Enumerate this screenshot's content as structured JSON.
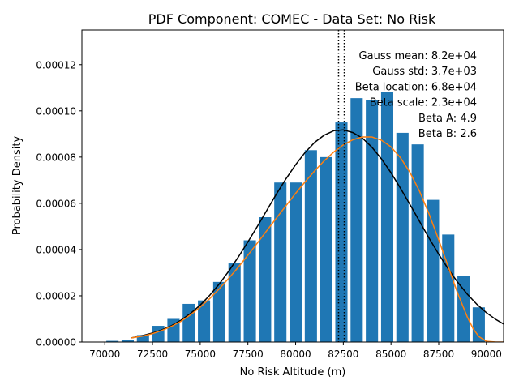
{
  "chart_data": {
    "type": "bar",
    "title": "PDF Component: COMEC - Data Set: No Risk",
    "xlabel": "No Risk Altitude (m)",
    "ylabel": "Probability Density",
    "xlim": [
      68800,
      90900
    ],
    "ylim": [
      0,
      0.000135
    ],
    "xticks": [
      70000,
      72500,
      75000,
      77500,
      80000,
      82500,
      85000,
      87500,
      90000
    ],
    "xtick_labels": [
      "70000",
      "72500",
      "75000",
      "77500",
      "80000",
      "82500",
      "85000",
      "87500",
      "90000"
    ],
    "yticks": [
      0,
      2e-05,
      4e-05,
      6e-05,
      8e-05,
      0.0001,
      0.00012
    ],
    "ytick_labels": [
      "0.00000",
      "0.00002",
      "0.00004",
      "0.00006",
      "0.00008",
      "0.00010",
      "0.00012"
    ],
    "grid": false,
    "bar_color": "#1f77b4",
    "bar_width": 640,
    "bars": {
      "x": [
        70400,
        71200,
        72000,
        72800,
        73600,
        74400,
        75200,
        76000,
        76800,
        77600,
        78400,
        79200,
        80000,
        80800,
        81600,
        82400,
        83200,
        84000,
        84800,
        85600,
        86400,
        87200,
        88000,
        88800,
        89600
      ],
      "values": [
        5e-07,
        8e-07,
        3e-06,
        7e-06,
        1e-05,
        1.65e-05,
        1.8e-05,
        2.6e-05,
        3.4e-05,
        4.4e-05,
        5.4e-05,
        6.9e-05,
        6.9e-05,
        8.3e-05,
        8e-05,
        9.5e-05,
        0.0001055,
        0.0001045,
        0.000108,
        9.05e-05,
        8.55e-05,
        6.15e-05,
        4.65e-05,
        2.85e-05,
        1.5e-05
      ]
    },
    "curves": [
      {
        "name": "Gauss",
        "color": "#000000",
        "x": [
          71400,
          72000,
          72500,
          73000,
          73500,
          74000,
          74500,
          75000,
          75500,
          76000,
          76500,
          77000,
          77500,
          78000,
          78500,
          79000,
          79500,
          80000,
          80500,
          81000,
          81500,
          82000,
          82500,
          83000,
          83500,
          84000,
          84500,
          85000,
          85500,
          86000,
          86500,
          87000,
          87500,
          88000,
          88500,
          89000,
          89500,
          90000,
          90500,
          90900
        ],
        "values": [
          1.8e-06,
          2.8e-06,
          3.9e-06,
          5.3e-06,
          7.1e-06,
          9.5e-06,
          1.24e-05,
          1.6e-05,
          2.02e-05,
          2.51e-05,
          3.07e-05,
          3.68e-05,
          4.33e-05,
          5.01e-05,
          5.71e-05,
          6.41e-05,
          7.07e-05,
          7.67e-05,
          8.2e-05,
          8.64e-05,
          8.95e-05,
          9.14e-05,
          9.18e-05,
          9.06e-05,
          8.82e-05,
          8.43e-05,
          7.92e-05,
          7.32e-05,
          6.65e-05,
          5.94e-05,
          5.21e-05,
          4.49e-05,
          3.8e-05,
          3.16e-05,
          2.58e-05,
          2.07e-05,
          1.63e-05,
          1.27e-05,
          9.7e-06,
          7.8e-06
        ]
      },
      {
        "name": "Beta",
        "color": "#ff7f0e",
        "x": [
          71400,
          72000,
          72500,
          73000,
          73500,
          74000,
          74500,
          75000,
          75500,
          76000,
          76500,
          77000,
          77500,
          78000,
          78500,
          79000,
          79500,
          80000,
          80500,
          81000,
          81500,
          82000,
          82500,
          83000,
          83500,
          84000,
          84500,
          85000,
          85500,
          86000,
          86500,
          87000,
          87500,
          88000,
          88500,
          89000,
          89300,
          89600,
          90000,
          90500,
          90900
        ],
        "values": [
          1.8e-06,
          2.6e-06,
          3.6e-06,
          5e-06,
          6.8e-06,
          9e-06,
          1.18e-05,
          1.51e-05,
          1.88e-05,
          2.3e-05,
          2.76e-05,
          3.24e-05,
          3.76e-05,
          4.29e-05,
          4.83e-05,
          5.37e-05,
          5.9e-05,
          6.43e-05,
          6.93e-05,
          7.41e-05,
          7.84e-05,
          8.22e-05,
          8.53e-05,
          8.75e-05,
          8.87e-05,
          8.87e-05,
          8.73e-05,
          8.44e-05,
          7.97e-05,
          7.33e-05,
          6.51e-05,
          5.53e-05,
          4.42e-05,
          3.25e-05,
          2.1e-05,
          1.08e-05,
          5.8e-06,
          2.4e-06,
          3e-07,
          0.0,
          0.0
        ]
      }
    ],
    "vlines": [
      {
        "x": 82250,
        "style": "dotted",
        "color": "#000000"
      },
      {
        "x": 82550,
        "style": "dotted",
        "color": "#000000"
      }
    ],
    "annotations": [
      "Gauss mean: 8.2e+04",
      "Gauss std: 3.7e+03",
      "Beta location: 6.8e+04",
      "Beta scale: 2.3e+04",
      "Beta A: 4.9",
      "Beta B: 2.6"
    ]
  }
}
